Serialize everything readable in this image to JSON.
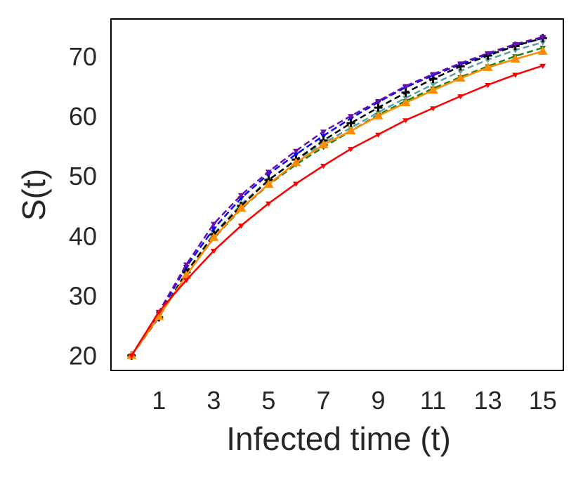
{
  "chart_data": {
    "type": "line",
    "title": "",
    "xlabel": "Infected time (t)",
    "ylabel": "S(t)",
    "x": [
      0,
      1,
      2,
      3,
      4,
      5,
      6,
      7,
      8,
      9,
      10,
      11,
      12,
      13,
      14,
      15
    ],
    "xticks": [
      1,
      3,
      5,
      7,
      9,
      11,
      13,
      15
    ],
    "yticks": [
      20,
      30,
      40,
      50,
      60,
      70
    ],
    "xlim": [
      -0.75,
      15.75
    ],
    "ylim": [
      17.5,
      76.2
    ],
    "grid": false,
    "legend": "none",
    "series": [
      {
        "name": "teal",
        "color": "#5f9ea0",
        "dash": "dashed",
        "marker": "triangle-down",
        "values": [
          20,
          26.7,
          33.8,
          40.3,
          45.3,
          49.3,
          52.6,
          55.5,
          58.0,
          60.6,
          63.0,
          65.3,
          67.5,
          69.4,
          71.0,
          72.3
        ]
      },
      {
        "name": "green",
        "color": "#1a7f1a",
        "dash": "dashed",
        "marker": "triangle-down",
        "values": [
          20,
          26.6,
          33.5,
          39.6,
          44.5,
          48.5,
          51.9,
          54.8,
          57.5,
          60.2,
          62.5,
          64.6,
          66.5,
          68.3,
          70.0,
          71.4
        ]
      },
      {
        "name": "blue",
        "color": "#0000ff",
        "dash": "dashed",
        "marker": "triangle-down",
        "values": [
          20,
          27.0,
          34.8,
          41.2,
          46.3,
          50.3,
          53.6,
          56.7,
          59.6,
          62.3,
          64.8,
          66.8,
          68.6,
          70.3,
          71.8,
          73.0
        ]
      },
      {
        "name": "black",
        "color": "#000000",
        "dash": "dashed",
        "marker": "plus",
        "values": [
          20,
          26.4,
          33.9,
          40.2,
          45.0,
          49.3,
          52.7,
          55.9,
          58.8,
          61.4,
          63.9,
          66.2,
          68.3,
          70.1,
          71.7,
          73.0
        ]
      },
      {
        "name": "purple",
        "color": "#6a0dad",
        "dash": "dashed",
        "marker": "triangle-down",
        "values": [
          20,
          27.3,
          35.2,
          42.0,
          46.8,
          50.7,
          54.2,
          57.4,
          60.0,
          62.5,
          65.0,
          67.0,
          68.8,
          70.5,
          72.0,
          73.2
        ]
      },
      {
        "name": "orange",
        "color": "#ff8c00",
        "dash": "solid",
        "marker": "triangle-up",
        "values": [
          20,
          26.5,
          33.4,
          39.7,
          44.6,
          48.6,
          52.2,
          55.2,
          57.5,
          60.0,
          62.2,
          64.3,
          66.3,
          68.1,
          69.5,
          70.8
        ]
      },
      {
        "name": "red",
        "color": "#ff0000",
        "dash": "solid",
        "marker": "triangle-down",
        "values": [
          20,
          27.3,
          32.6,
          37.5,
          41.7,
          45.4,
          48.7,
          51.7,
          54.5,
          56.9,
          59.3,
          61.3,
          63.3,
          65.2,
          66.9,
          68.4
        ]
      }
    ]
  }
}
